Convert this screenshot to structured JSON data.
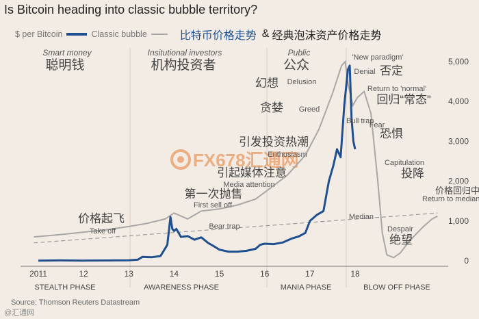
{
  "title": "Is Bitcoin heading into classic bubble territory?",
  "legend": {
    "btc": "$ per Bitcoin",
    "bubble": "Classic bubble",
    "btc_cn": "比特币价格走势",
    "amp": "&",
    "bubble_cn": "经典泡沫资产价格走势"
  },
  "source": "Source: Thomson Reuters Datastream",
  "watermark": "FX678汇通网",
  "watermark2": "@汇通网",
  "colors": {
    "btc": "#1f4f8f",
    "bubble": "#a9a6a6",
    "median": "#9a9a9a",
    "background": "#f3ece4",
    "text": "#444444"
  },
  "chart_data": {
    "type": "line",
    "x_ticks": [
      "2011",
      "12",
      "13",
      "14",
      "15",
      "16",
      "17",
      "18"
    ],
    "ylim": [
      0,
      5000
    ],
    "y_ticks": [
      "1,000",
      "2,000",
      "3,000",
      "4,000",
      "5,000"
    ],
    "y_zero_label": "0",
    "phases": [
      "STEALTH PHASE",
      "AWARENESS PHASE",
      "MANIA PHASE",
      "BLOW OFF PHASE"
    ],
    "stage_labels": [
      {
        "en": "Smart money",
        "cn": "聪明钱"
      },
      {
        "en": "Insitutional investors",
        "cn": "机构投资者"
      },
      {
        "en": "Public",
        "cn": "公众"
      }
    ],
    "annotations": [
      {
        "en": "Take off",
        "cn": "价格起飞"
      },
      {
        "en": "First sell off",
        "cn": "第一次抛售"
      },
      {
        "en": "Bear trap",
        "cn": ""
      },
      {
        "en": "Media attention",
        "cn": "引起媒体注意"
      },
      {
        "en": "Enthusiasm",
        "cn": "引发投资热潮"
      },
      {
        "en": "Greed",
        "cn": "贪婪"
      },
      {
        "en": "Delusion",
        "cn": "幻想"
      },
      {
        "en": "'New paradigm'",
        "cn": ""
      },
      {
        "en": "Denial",
        "cn": "否定"
      },
      {
        "en": "Return to 'normal'",
        "cn": "回归“常态”"
      },
      {
        "en": "Bull trap",
        "cn": ""
      },
      {
        "en": "Fear",
        "cn": "恐惧"
      },
      {
        "en": "Capitulation",
        "cn": "投降"
      },
      {
        "en": "Return to median",
        "cn": "价格回归中值"
      },
      {
        "en": "Median",
        "cn": ""
      },
      {
        "en": "Despair",
        "cn": "绝望"
      }
    ],
    "series": [
      {
        "name": "$ per Bitcoin",
        "x": [
          2011.0,
          2011.5,
          2012.0,
          2012.5,
          2013.0,
          2013.2,
          2013.3,
          2013.5,
          2013.7,
          2013.85,
          2013.92,
          2013.96,
          2014.0,
          2014.05,
          2014.15,
          2014.3,
          2014.45,
          2014.6,
          2014.75,
          2014.9,
          2015.0,
          2015.2,
          2015.4,
          2015.6,
          2015.8,
          2015.9,
          2016.0,
          2016.2,
          2016.4,
          2016.6,
          2016.75,
          2016.9,
          2017.0,
          2017.15,
          2017.3,
          2017.42,
          2017.52,
          2017.6,
          2017.68,
          2017.76,
          2017.84,
          2017.88,
          2017.92,
          2017.96,
          2018.0
        ],
        "y": [
          5,
          10,
          6,
          9,
          13,
          30,
          100,
          90,
          120,
          400,
          1100,
          800,
          750,
          800,
          600,
          620,
          530,
          590,
          450,
          350,
          280,
          230,
          230,
          250,
          300,
          400,
          430,
          420,
          460,
          560,
          610,
          700,
          1000,
          1150,
          1250,
          2000,
          2400,
          2800,
          2600,
          3900,
          4800,
          4900,
          3600,
          3000,
          2800
        ]
      },
      {
        "name": "Classic bubble",
        "x": [
          2010.9,
          2011.5,
          2012.0,
          2012.5,
          2013.0,
          2013.4,
          2013.8,
          2014.0,
          2014.1,
          2014.3,
          2014.6,
          2015.0,
          2015.4,
          2015.8,
          2016.1,
          2016.5,
          2016.9,
          2017.2,
          2017.5,
          2017.7,
          2017.78,
          2017.85,
          2017.95,
          2018.05,
          2018.2,
          2018.35,
          2018.5,
          2018.6,
          2018.7,
          2018.85,
          2019.0,
          2019.2,
          2019.5,
          2019.7,
          2019.82
        ],
        "y": [
          600,
          660,
          720,
          780,
          860,
          940,
          1050,
          1200,
          1150,
          1050,
          1250,
          1300,
          1400,
          1550,
          1800,
          2150,
          2650,
          3300,
          4200,
          4900,
          5000,
          4400,
          3900,
          4100,
          4250,
          3700,
          2000,
          700,
          150,
          80,
          200,
          500,
          850,
          1050,
          1120
        ]
      },
      {
        "name": "Median",
        "x": [
          2010.9,
          2019.82
        ],
        "y": [
          450,
          1200
        ]
      }
    ]
  }
}
